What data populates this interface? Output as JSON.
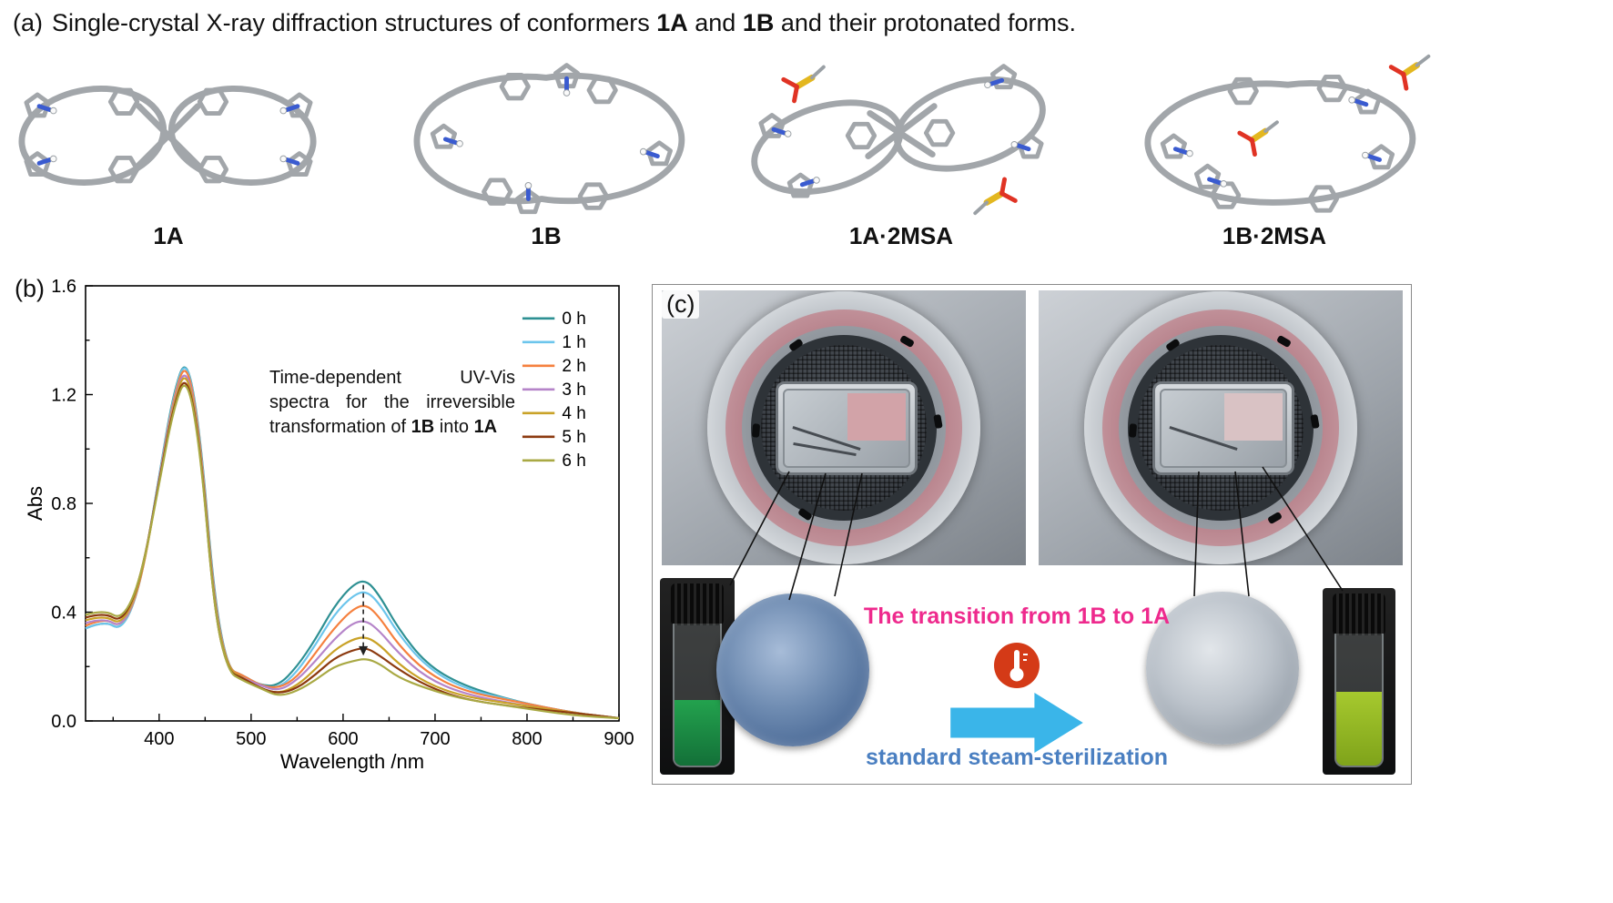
{
  "panel_a": {
    "label": "(a)",
    "title": {
      "t1": "Single-crystal X-ray diffraction structures of conformers ",
      "b1": "1A",
      "t2": " and ",
      "b2": "1B",
      "t3": " and their protonated forms."
    },
    "structures": [
      {
        "label": "1A"
      },
      {
        "label": "1B"
      },
      {
        "label": "1A·2MSA"
      },
      {
        "label": "1B·2MSA"
      }
    ]
  },
  "panel_b": {
    "label": "(b)",
    "annotation": {
      "t1": "Time-dependent UV-Vis spectra for the irreversible transformation of ",
      "b1": "1B",
      "t2": " into ",
      "b2": "1A"
    }
  },
  "chart_data": {
    "type": "line",
    "title": "Time-dependent UV-Vis spectra for the irreversible transformation of 1B into 1A",
    "xlabel": "Wavelength /nm",
    "ylabel": "Abs",
    "xlim": [
      320,
      900
    ],
    "ylim": [
      0,
      1.6
    ],
    "xticks": [
      400,
      500,
      600,
      700,
      800,
      900
    ],
    "xminor": [
      350,
      450,
      550,
      650,
      750,
      850
    ],
    "yticks": [
      0.0,
      0.4,
      0.8,
      1.2,
      1.6
    ],
    "yminor": [
      0.2,
      0.6,
      1.0,
      1.4
    ],
    "legend_position": "top-right",
    "grid": false,
    "x": [
      320,
      340,
      360,
      380,
      400,
      415,
      430,
      445,
      460,
      475,
      490,
      510,
      530,
      550,
      570,
      590,
      610,
      625,
      640,
      660,
      690,
      730,
      790,
      850,
      900
    ],
    "series": [
      {
        "name": "0 h",
        "color": "#2e9093",
        "y": [
          0.34,
          0.37,
          0.33,
          0.5,
          0.9,
          1.2,
          1.35,
          1.05,
          0.45,
          0.19,
          0.17,
          0.13,
          0.13,
          0.2,
          0.3,
          0.42,
          0.5,
          0.52,
          0.46,
          0.34,
          0.21,
          0.13,
          0.07,
          0.03,
          0.01
        ]
      },
      {
        "name": "1 h",
        "color": "#6cc5ec",
        "y": [
          0.34,
          0.37,
          0.33,
          0.5,
          0.9,
          1.19,
          1.35,
          1.04,
          0.44,
          0.19,
          0.17,
          0.13,
          0.12,
          0.18,
          0.28,
          0.39,
          0.46,
          0.48,
          0.43,
          0.32,
          0.2,
          0.12,
          0.07,
          0.03,
          0.01
        ]
      },
      {
        "name": "2 h",
        "color": "#f5803e",
        "y": [
          0.35,
          0.38,
          0.34,
          0.5,
          0.89,
          1.18,
          1.34,
          1.03,
          0.43,
          0.19,
          0.17,
          0.13,
          0.12,
          0.16,
          0.25,
          0.34,
          0.41,
          0.43,
          0.38,
          0.28,
          0.18,
          0.11,
          0.07,
          0.03,
          0.01
        ]
      },
      {
        "name": "3 h",
        "color": "#b584c9",
        "y": [
          0.36,
          0.38,
          0.34,
          0.51,
          0.89,
          1.17,
          1.32,
          1.02,
          0.42,
          0.19,
          0.16,
          0.13,
          0.11,
          0.15,
          0.22,
          0.3,
          0.36,
          0.37,
          0.33,
          0.25,
          0.16,
          0.1,
          0.06,
          0.03,
          0.01
        ]
      },
      {
        "name": "4 h",
        "color": "#c9a227",
        "y": [
          0.37,
          0.39,
          0.35,
          0.51,
          0.88,
          1.16,
          1.31,
          1.01,
          0.41,
          0.19,
          0.16,
          0.12,
          0.1,
          0.13,
          0.19,
          0.26,
          0.3,
          0.31,
          0.28,
          0.21,
          0.14,
          0.09,
          0.06,
          0.03,
          0.01
        ]
      },
      {
        "name": "5 h",
        "color": "#8c3a10",
        "y": [
          0.38,
          0.4,
          0.36,
          0.52,
          0.88,
          1.15,
          1.29,
          1.0,
          0.4,
          0.18,
          0.16,
          0.12,
          0.1,
          0.12,
          0.17,
          0.23,
          0.26,
          0.27,
          0.24,
          0.19,
          0.13,
          0.08,
          0.05,
          0.03,
          0.01
        ]
      },
      {
        "name": "6 h",
        "color": "#a9a944",
        "y": [
          0.39,
          0.41,
          0.37,
          0.52,
          0.87,
          1.14,
          1.28,
          0.99,
          0.4,
          0.18,
          0.15,
          0.12,
          0.09,
          0.11,
          0.15,
          0.2,
          0.22,
          0.23,
          0.21,
          0.16,
          0.12,
          0.08,
          0.05,
          0.02,
          0.01
        ]
      }
    ],
    "annotation_arrow": {
      "x": 622,
      "y_from": 0.5,
      "y_to": 0.24,
      "style": "dashed-down"
    }
  },
  "panel_c": {
    "label": "(c)",
    "transition_text": "The transition from 1B to 1A",
    "sterilization_text": "standard steam-sterilization",
    "colors": {
      "transition": "#ee2a8d",
      "sterilization": "#4a7fc1",
      "arrow": "#3ab5e9",
      "thermometer": "#d43a17",
      "disk_left": "#6e8bb1",
      "disk_right": "#bcc3cb",
      "vial_left_liquid": "#23a24e",
      "vial_right_liquid": "#a6c92e"
    }
  }
}
